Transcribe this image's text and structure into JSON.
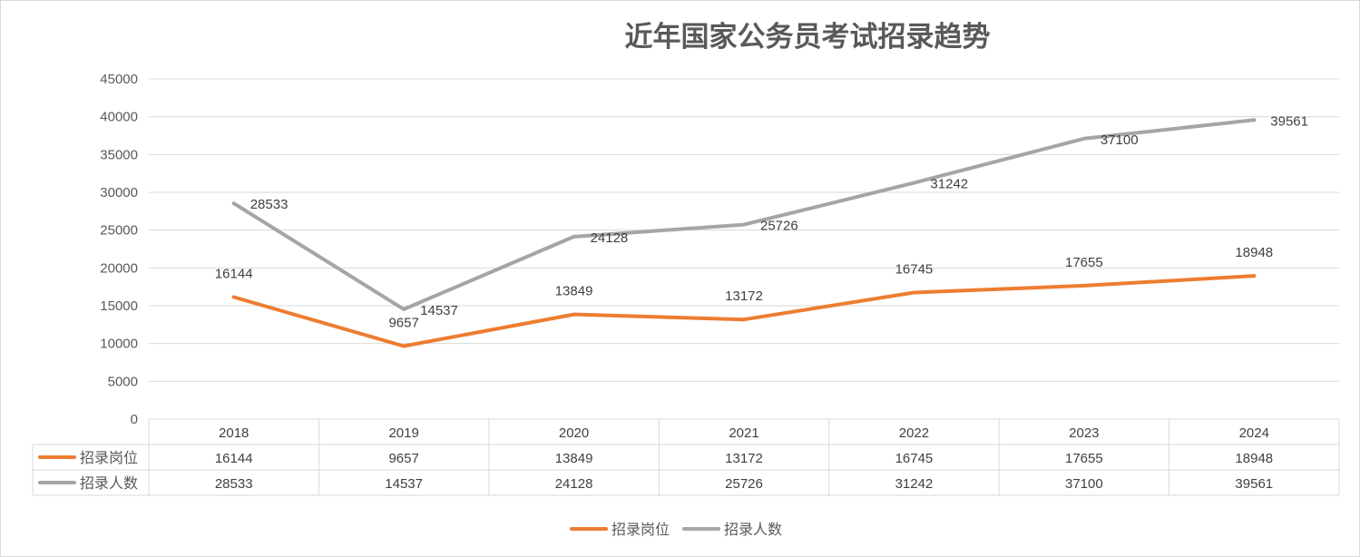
{
  "chart_data": {
    "type": "line",
    "title": "近年国家公务员考试招录趋势",
    "categories": [
      "2018",
      "2019",
      "2020",
      "2021",
      "2022",
      "2023",
      "2024"
    ],
    "ylim": [
      0,
      45000
    ],
    "yticks": [
      0,
      5000,
      10000,
      15000,
      20000,
      25000,
      30000,
      35000,
      40000,
      45000
    ],
    "grid": true,
    "legend_position": "bottom",
    "data_table": true,
    "series": [
      {
        "name": "招录岗位",
        "color": "#ED7D31",
        "values": [
          16144,
          9657,
          13849,
          13172,
          16745,
          17655,
          18948
        ]
      },
      {
        "name": "招录人数",
        "color": "#A5A5A5",
        "values": [
          28533,
          14537,
          24128,
          25726,
          31242,
          37100,
          39561
        ]
      }
    ]
  }
}
